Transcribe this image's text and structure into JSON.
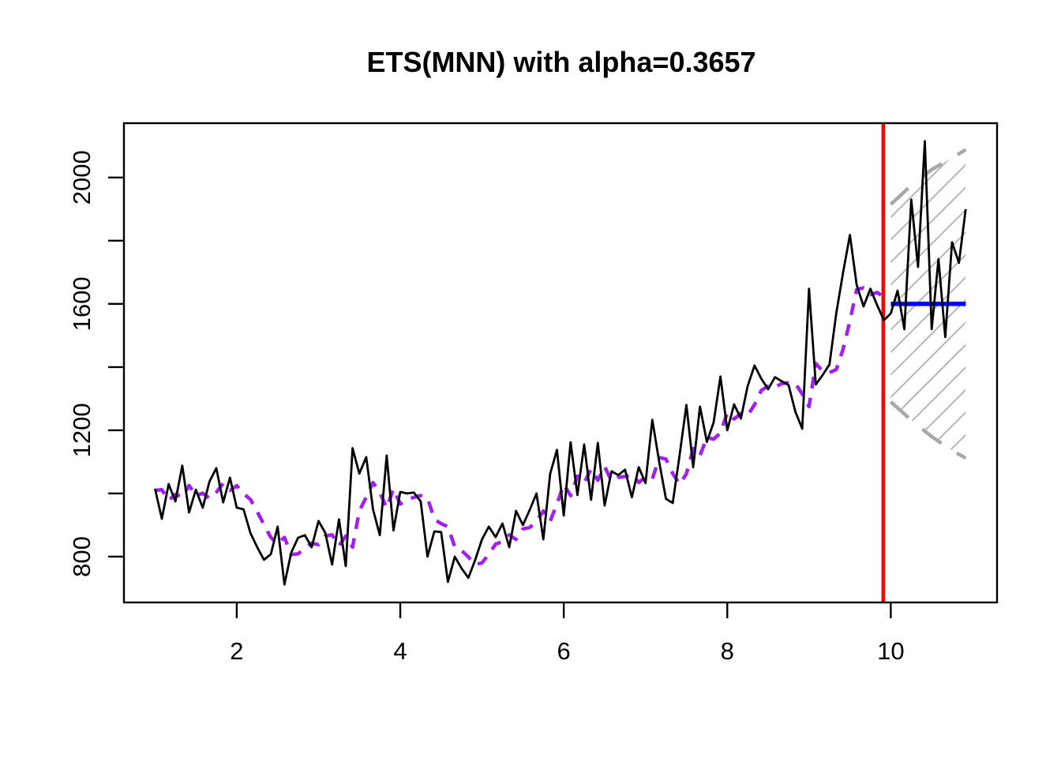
{
  "chart_data": {
    "type": "line",
    "title": "ETS(MNN) with alpha=0.3657",
    "model": "ETS(MNN)",
    "alpha": 0.3657,
    "xlabel": "",
    "ylabel": "",
    "grid": false,
    "legend_position": "none",
    "xlim": [
      0.62,
      11.3
    ],
    "ylim": [
      655,
      2172
    ],
    "x_ticks": [
      2,
      4,
      6,
      8,
      10
    ],
    "y_ticks_all": [
      800,
      1000,
      1200,
      1400,
      1600,
      1800,
      2000
    ],
    "y_ticks_labeled": [
      800,
      1200,
      1600,
      2000
    ],
    "colors": {
      "observed": "#000000",
      "fitted": "#A020F0",
      "split_line": "#FF0000",
      "forecast": "#0000FF",
      "interval_bound": "#A8A8A8",
      "hatch": "#B5B5B5",
      "box": "#000000",
      "background": "#FFFFFF"
    },
    "series": {
      "observed": {
        "name": "observed",
        "x_start": 1.0,
        "x_step": 0.0833333,
        "train_points": 108,
        "values": [
          1015,
          920,
          1030,
          975,
          1088,
          940,
          1012,
          955,
          1038,
          1080,
          972,
          1050,
          955,
          950,
          875,
          830,
          790,
          808,
          895,
          712,
          813,
          860,
          868,
          830,
          913,
          875,
          775,
          918,
          770,
          1143,
          1063,
          1115,
          950,
          868,
          1120,
          883,
          1005,
          1000,
          1003,
          975,
          800,
          880,
          878,
          720,
          800,
          763,
          733,
          790,
          855,
          895,
          862,
          905,
          830,
          945,
          900,
          948,
          1000,
          855,
          1062,
          1138,
          930,
          1162,
          995,
          1155,
          980,
          1160,
          962,
          1070,
          1058,
          1075,
          988,
          1083,
          1033,
          1233,
          1100,
          983,
          970,
          1120,
          1280,
          1083,
          1275,
          1163,
          1225,
          1370,
          1200,
          1282,
          1237,
          1340,
          1405,
          1363,
          1330,
          1368,
          1355,
          1343,
          1258,
          1205,
          1648,
          1345,
          1375,
          1408,
          1570,
          1700,
          1818,
          1660,
          1592,
          1648,
          1596,
          1548,
          1570,
          1642,
          1520,
          1930,
          1717,
          2115,
          1520,
          1742,
          1495,
          1795,
          1730,
          1900
        ]
      },
      "fitted": {
        "name": "fitted-one-step-forecasts",
        "style": "dashed",
        "alpha": 0.3657,
        "initial_level": 1010
      },
      "split_line": {
        "name": "train-test-split",
        "x": 9.908
      },
      "forecast": {
        "name": "point-forecast",
        "x_start": 10.0,
        "x_end": 10.917,
        "value": 1600
      },
      "interval_upper": {
        "name": "prediction-interval-upper",
        "style": "dashed",
        "points": [
          [
            10.0,
            1915
          ],
          [
            10.25,
            1975
          ],
          [
            10.5,
            2025
          ],
          [
            10.75,
            2062
          ],
          [
            10.917,
            2088
          ]
        ]
      },
      "interval_lower": {
        "name": "prediction-interval-lower",
        "style": "dashed",
        "points": [
          [
            10.0,
            1290
          ],
          [
            10.25,
            1232
          ],
          [
            10.5,
            1180
          ],
          [
            10.75,
            1136
          ],
          [
            10.917,
            1112
          ]
        ]
      }
    },
    "hatch": {
      "spacing_px": 28.5,
      "angle_deg": 45
    }
  }
}
